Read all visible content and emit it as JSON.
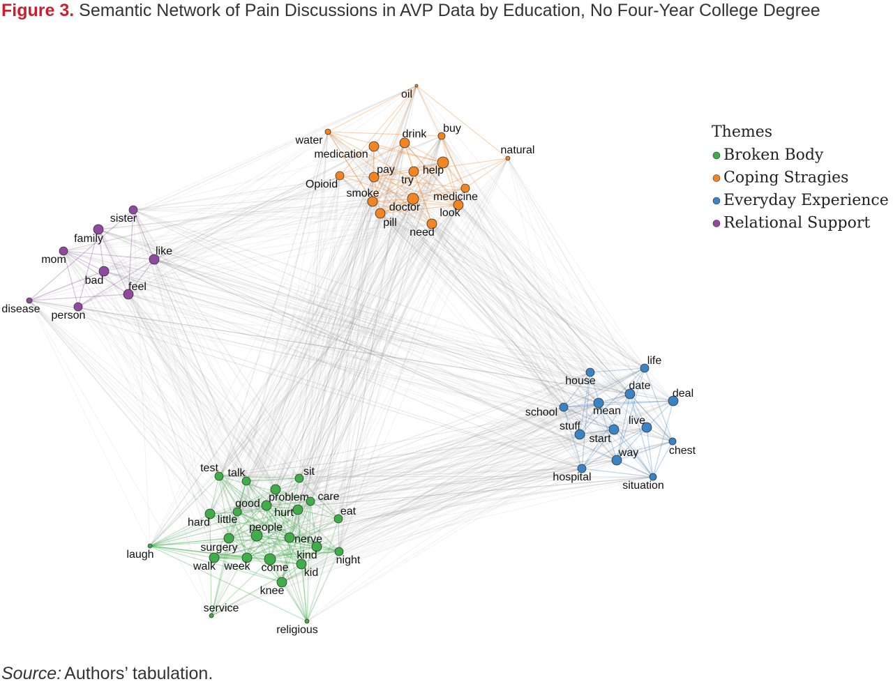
{
  "header": {
    "figure": "Figure 3.",
    "title": "Semantic Network of Pain Discussions in AVP Data by Education, No Four-Year College Degree"
  },
  "legend": {
    "title": "Themes"
  },
  "themes": [
    {
      "name": "Broken Body",
      "color": "#3fae49",
      "nodes": [
        "test",
        "talk",
        "sit",
        "problem",
        "care",
        "good",
        "little",
        "hurt",
        "eat",
        "hard",
        "people",
        "surgery",
        "nerve",
        "kind",
        "walk",
        "week",
        "come",
        "kid",
        "night",
        "knee",
        "laugh",
        "service",
        "religious"
      ]
    },
    {
      "name": "Coping Stragies",
      "color": "#f28522",
      "nodes": [
        "oil",
        "buy",
        "water",
        "drink",
        "medication",
        "natural",
        "help",
        "pay",
        "try",
        "Opioid",
        "medicine",
        "smoke",
        "doctor",
        "look",
        "pill",
        "need"
      ]
    },
    {
      "name": "Everyday Experience",
      "color": "#3a83c5",
      "nodes": [
        "life",
        "house",
        "date",
        "deal",
        "mean",
        "school",
        "live",
        "stuff",
        "start",
        "chest",
        "way",
        "hospital",
        "situation"
      ]
    },
    {
      "name": "Relational Support",
      "color": "#8e4a9e",
      "nodes": [
        "sister",
        "family",
        "like",
        "mom",
        "bad",
        "feel",
        "disease",
        "person"
      ]
    }
  ],
  "source": {
    "label": "Source:",
    "text": "Authors’ tabulation."
  }
}
